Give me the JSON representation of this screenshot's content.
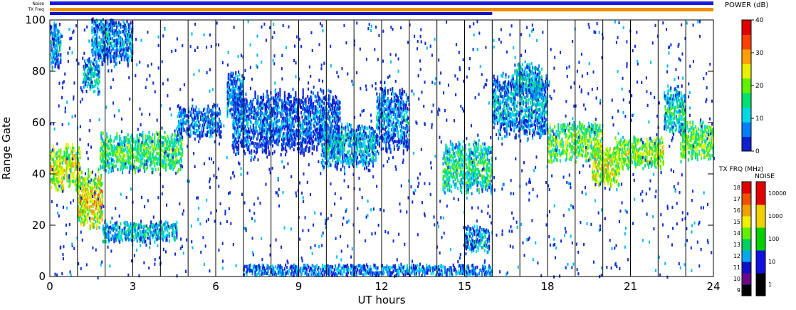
{
  "chart_data": {
    "type": "heatmap",
    "xlabel": "UT hours",
    "ylabel": "Range Gate",
    "xlim": [
      0,
      24
    ],
    "ylim": [
      0,
      100
    ],
    "x_ticks": [
      "0",
      "3",
      "6",
      "9",
      "12",
      "15",
      "18",
      "21",
      "24"
    ],
    "y_ticks": [
      "0",
      "20",
      "40",
      "60",
      "80",
      "100"
    ],
    "hour_lines": [
      1,
      2,
      3,
      4,
      5,
      6,
      7,
      8,
      9,
      10,
      11,
      12,
      13,
      14,
      15,
      16,
      17,
      18,
      19,
      20,
      21,
      22,
      23
    ],
    "top_bars": {
      "noise_label": "Noise",
      "txfreq_label": "TX Freq",
      "noise_color": "#1a1ae0",
      "txfreq_color_a": "#f08c00",
      "txfreq_color_b": "#1010c8",
      "txfreq_switch_hour": 16
    },
    "power_scale": {
      "title": "POWER (dB)",
      "ticks": [
        "0",
        "10",
        "20",
        "30",
        "40"
      ],
      "colors": [
        "#1020d0",
        "#0080ff",
        "#00d8e8",
        "#00e070",
        "#60f000",
        "#e8f000",
        "#ffa000",
        "#ff4000",
        "#e00000"
      ]
    },
    "txfreq_scale": {
      "title": "TX FRQ (MHz)",
      "ticks": [
        "9",
        "10",
        "11",
        "12",
        "13",
        "14",
        "15",
        "16",
        "17",
        "18"
      ],
      "colors": [
        "#000000",
        "#6a0a8a",
        "#1010c8",
        "#00a8f0",
        "#00d060",
        "#60f000",
        "#f0f000",
        "#f0a000",
        "#f05000",
        "#e00000"
      ]
    },
    "noise_scale": {
      "title": "NOISE",
      "ticks": [
        "1",
        "10",
        "100",
        "1000",
        "10000"
      ],
      "colors": [
        "#000000",
        "#1010e0",
        "#00d000",
        "#f0d000",
        "#e00000"
      ]
    },
    "echo_regions": [
      {
        "x0": 0.0,
        "x1": 1.1,
        "y_center": 42,
        "y_half": 7,
        "power": 25
      },
      {
        "x0": 0.0,
        "x1": 0.4,
        "y_center": 90,
        "y_half": 8,
        "power": 8
      },
      {
        "x0": 1.0,
        "x1": 1.9,
        "y_center": 30,
        "y_half": 9,
        "power": 28
      },
      {
        "x0": 1.2,
        "x1": 1.8,
        "y_center": 78,
        "y_half": 5,
        "power": 10
      },
      {
        "x0": 1.5,
        "x1": 3.0,
        "y_center": 92,
        "y_half": 8,
        "power": 8
      },
      {
        "x0": 1.8,
        "x1": 4.8,
        "y_center": 48,
        "y_half": 6,
        "power": 18
      },
      {
        "x0": 1.9,
        "x1": 4.6,
        "y_center": 17,
        "y_half": 3,
        "power": 10
      },
      {
        "x0": 4.6,
        "x1": 6.2,
        "y_center": 60,
        "y_half": 5,
        "power": 6
      },
      {
        "x0": 6.4,
        "x1": 7.0,
        "y_center": 70,
        "y_half": 8,
        "power": 8
      },
      {
        "x0": 6.6,
        "x1": 10.5,
        "y_center": 60,
        "y_half": 10,
        "power": 6
      },
      {
        "x0": 9.8,
        "x1": 11.8,
        "y_center": 50,
        "y_half": 7,
        "power": 10
      },
      {
        "x0": 11.8,
        "x1": 13.0,
        "y_center": 60,
        "y_half": 10,
        "power": 8
      },
      {
        "x0": 14.2,
        "x1": 16.0,
        "y_center": 42,
        "y_half": 8,
        "power": 16
      },
      {
        "x0": 15.0,
        "x1": 15.9,
        "y_center": 14,
        "y_half": 4,
        "power": 8
      },
      {
        "x0": 16.0,
        "x1": 18.0,
        "y_center": 66,
        "y_half": 10,
        "power": 10
      },
      {
        "x0": 16.8,
        "x1": 17.8,
        "y_center": 76,
        "y_half": 5,
        "power": 10
      },
      {
        "x0": 18.0,
        "x1": 20.0,
        "y_center": 52,
        "y_half": 6,
        "power": 20
      },
      {
        "x0": 19.6,
        "x1": 20.6,
        "y_center": 42,
        "y_half": 6,
        "power": 26
      },
      {
        "x0": 20.4,
        "x1": 22.2,
        "y_center": 48,
        "y_half": 5,
        "power": 22
      },
      {
        "x0": 22.2,
        "x1": 23.0,
        "y_center": 64,
        "y_half": 8,
        "power": 14
      },
      {
        "x0": 22.8,
        "x1": 24.0,
        "y_center": 52,
        "y_half": 6,
        "power": 20
      },
      {
        "x0": 7.0,
        "x1": 16.0,
        "y_center": 1.5,
        "y_half": 2,
        "power": 5
      }
    ]
  }
}
